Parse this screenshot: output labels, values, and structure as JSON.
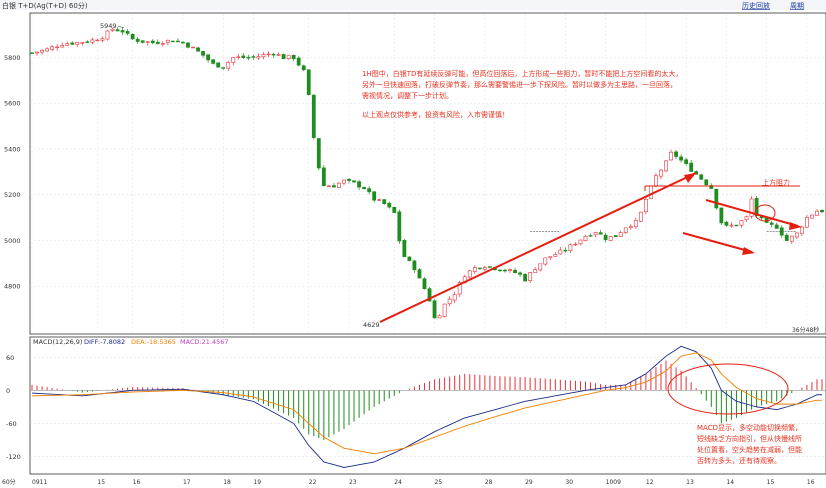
{
  "header": {
    "symbol_title": "白银 T+D(Ag(T+D) 60分)",
    "k_marker": "K",
    "link_history": "历史回放",
    "link_cycle": "周期"
  },
  "bottom_left_label": "60分",
  "price_axis": {
    "ticks": [
      "5800",
      "5600",
      "5400",
      "5200",
      "5000",
      "4800"
    ],
    "ylim": [
      4600,
      5990
    ]
  },
  "macd_axis": {
    "ticks": [
      "60",
      "0",
      "-60",
      "-120"
    ],
    "ylim": [
      -150,
      95
    ]
  },
  "x_axis": {
    "labels": [
      "0911",
      "15",
      "16",
      "17",
      "18",
      "19",
      "22",
      "23",
      "24",
      "25",
      "28",
      "29",
      "30",
      "1009",
      "12",
      "13",
      "14",
      "15",
      "16"
    ],
    "x": [
      0,
      13,
      20,
      30,
      38,
      44,
      55,
      63,
      72,
      80,
      90,
      98,
      106,
      114,
      122,
      130,
      138,
      146,
      154
    ]
  },
  "annotations": {
    "main_text": [
      "1H图中，白银TD有延续反弹可能，但高位回落后，上方形成一些阻力，暂时不能把上方空间看的太大，",
      "另外一旦快速回落，打破反弹节奏，那么需要警惕进一步下探风险。暂时以做多为主思路，一旦回落，",
      "需视情况，调整下一步计划。"
    ],
    "disclaimer": "以上观点仅供参考，投资有风险，入市需谨慎！",
    "resistance_label": "上方阻力",
    "high_label": "5949",
    "low_label": "4629",
    "time_label": "36分48秒",
    "macd_text": [
      "MACD显示，多空动能切换频繁，",
      "短线缺乏方向指引，但从快慢线所",
      "处位置看，空头趋势在减弱，但能",
      "否转为多头，还有待观察。"
    ]
  },
  "macd_legend": {
    "name": "MACD(12,26,9)",
    "diff": "DIFF:-7.8082",
    "dea": "DEA:-18.5365",
    "macd": "MACD:21.4567"
  },
  "colors": {
    "up": "#e8303a",
    "down": "#1e8c1e",
    "text_red": "#e8301e",
    "diff_line": "#1a2a8a",
    "dea_line": "#f08000",
    "axis": "#333333",
    "grid": "#dde4ee"
  },
  "chart_data": {
    "type": "candlestick",
    "price_close_path": [
      [
        0,
        5820
      ],
      [
        3,
        5835
      ],
      [
        6,
        5860
      ],
      [
        9,
        5865
      ],
      [
        12,
        5875
      ],
      [
        14,
        5890
      ],
      [
        16,
        5925
      ],
      [
        18,
        5915
      ],
      [
        20,
        5880
      ],
      [
        22,
        5870
      ],
      [
        24,
        5865
      ],
      [
        26,
        5870
      ],
      [
        28,
        5875
      ],
      [
        30,
        5865
      ],
      [
        32,
        5840
      ],
      [
        34,
        5810
      ],
      [
        36,
        5770
      ],
      [
        38,
        5760
      ],
      [
        40,
        5800
      ],
      [
        42,
        5800
      ],
      [
        44,
        5800
      ],
      [
        46,
        5810
      ],
      [
        48,
        5820
      ],
      [
        50,
        5800
      ],
      [
        52,
        5800
      ],
      [
        54,
        5740
      ],
      [
        55,
        5630
      ],
      [
        56,
        5450
      ],
      [
        57,
        5320
      ],
      [
        58,
        5240
      ],
      [
        60,
        5240
      ],
      [
        62,
        5260
      ],
      [
        64,
        5250
      ],
      [
        66,
        5230
      ],
      [
        68,
        5180
      ],
      [
        70,
        5160
      ],
      [
        72,
        5120
      ],
      [
        73,
        5000
      ],
      [
        74,
        4930
      ],
      [
        76,
        4880
      ],
      [
        77,
        4830
      ],
      [
        78,
        4790
      ],
      [
        79,
        4740
      ],
      [
        80,
        4660
      ],
      [
        81,
        4680
      ],
      [
        82,
        4720
      ],
      [
        84,
        4770
      ],
      [
        86,
        4850
      ],
      [
        88,
        4880
      ],
      [
        90,
        4890
      ],
      [
        92,
        4880
      ],
      [
        94,
        4870
      ],
      [
        96,
        4860
      ],
      [
        97,
        4850
      ],
      [
        98,
        4830
      ],
      [
        100,
        4880
      ],
      [
        102,
        4920
      ],
      [
        104,
        4940
      ],
      [
        106,
        4960
      ],
      [
        108,
        4990
      ],
      [
        110,
        5020
      ],
      [
        112,
        5040
      ],
      [
        114,
        5010
      ],
      [
        116,
        5020
      ],
      [
        118,
        5060
      ],
      [
        120,
        5080
      ],
      [
        121,
        5120
      ],
      [
        122,
        5180
      ],
      [
        124,
        5280
      ],
      [
        126,
        5340
      ],
      [
        127,
        5380
      ],
      [
        128,
        5370
      ],
      [
        130,
        5330
      ],
      [
        132,
        5290
      ],
      [
        134,
        5250
      ],
      [
        135,
        5230
      ],
      [
        136,
        5150
      ],
      [
        137,
        5080
      ],
      [
        138,
        5060
      ],
      [
        140,
        5070
      ],
      [
        142,
        5100
      ],
      [
        143,
        5180
      ],
      [
        144,
        5110
      ],
      [
        146,
        5070
      ],
      [
        148,
        5060
      ],
      [
        150,
        5000
      ],
      [
        152,
        5030
      ],
      [
        154,
        5100
      ],
      [
        156,
        5130
      ]
    ],
    "highlight": {
      "high": 5949,
      "low": 4629
    },
    "macd": {
      "diff": [
        [
          0,
          -5
        ],
        [
          10,
          -10
        ],
        [
          20,
          0
        ],
        [
          30,
          2
        ],
        [
          38,
          -8
        ],
        [
          44,
          -20
        ],
        [
          52,
          -60
        ],
        [
          55,
          -100
        ],
        [
          58,
          -130
        ],
        [
          62,
          -140
        ],
        [
          68,
          -130
        ],
        [
          74,
          -105
        ],
        [
          80,
          -75
        ],
        [
          86,
          -50
        ],
        [
          92,
          -35
        ],
        [
          98,
          -20
        ],
        [
          104,
          -10
        ],
        [
          110,
          0
        ],
        [
          114,
          5
        ],
        [
          118,
          10
        ],
        [
          122,
          30
        ],
        [
          126,
          62
        ],
        [
          129,
          80
        ],
        [
          132,
          70
        ],
        [
          135,
          40
        ],
        [
          137,
          0
        ],
        [
          140,
          -20
        ],
        [
          144,
          -30
        ],
        [
          148,
          -35
        ],
        [
          152,
          -25
        ],
        [
          156,
          -8
        ]
      ],
      "dea": [
        [
          0,
          -10
        ],
        [
          10,
          -8
        ],
        [
          20,
          -3
        ],
        [
          30,
          0
        ],
        [
          38,
          -4
        ],
        [
          44,
          -12
        ],
        [
          52,
          -35
        ],
        [
          55,
          -60
        ],
        [
          58,
          -85
        ],
        [
          62,
          -105
        ],
        [
          68,
          -115
        ],
        [
          74,
          -105
        ],
        [
          80,
          -85
        ],
        [
          86,
          -65
        ],
        [
          92,
          -48
        ],
        [
          98,
          -32
        ],
        [
          104,
          -20
        ],
        [
          110,
          -8
        ],
        [
          114,
          0
        ],
        [
          118,
          5
        ],
        [
          122,
          15
        ],
        [
          126,
          35
        ],
        [
          129,
          62
        ],
        [
          132,
          68
        ],
        [
          135,
          55
        ],
        [
          137,
          30
        ],
        [
          140,
          5
        ],
        [
          144,
          -15
        ],
        [
          148,
          -25
        ],
        [
          152,
          -25
        ],
        [
          156,
          -18
        ]
      ]
    }
  }
}
